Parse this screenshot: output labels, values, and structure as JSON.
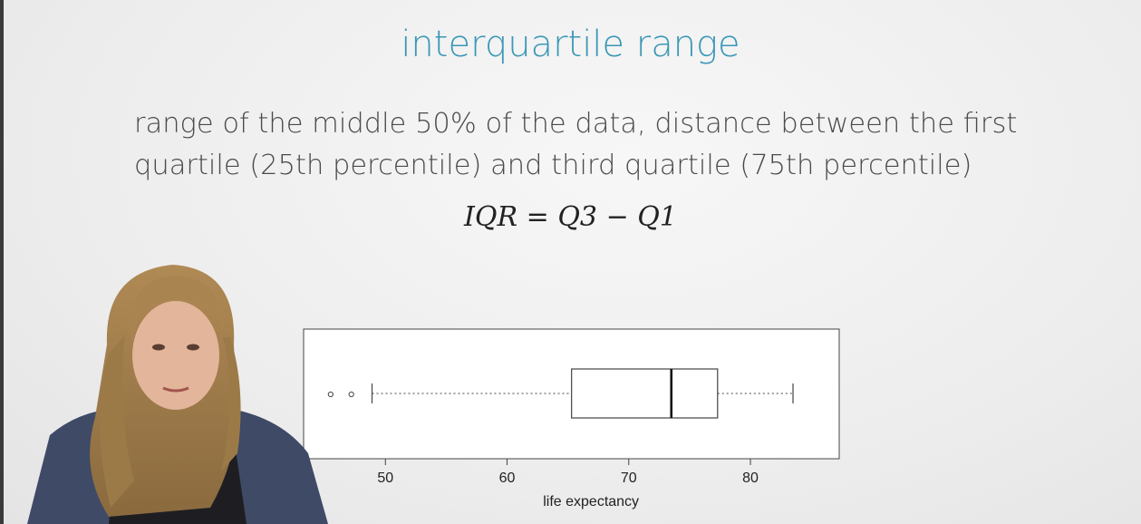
{
  "slide": {
    "title": "interquartile range",
    "definition": "range of the middle 50% of the data, distance between the first quartile (25th percentile) and third quartile (75th percentile)",
    "formula": {
      "lhs": "IQR",
      "equals": "=",
      "q3": "Q3",
      "minus": "−",
      "q1": "Q1"
    }
  },
  "chart_data": {
    "type": "box",
    "orientation": "horizontal",
    "xlabel": "life expectancy",
    "xlim": [
      43.5,
      87
    ],
    "ticks": [
      50,
      60,
      70,
      80
    ],
    "tick_labels": [
      "50",
      "60",
      "70",
      "80"
    ],
    "box": {
      "whisker_low": 48.9,
      "q1": 65.3,
      "median": 73.5,
      "q3": 77.3,
      "whisker_high": 83.5
    },
    "outliers": [
      45.5,
      47.2
    ]
  },
  "colors": {
    "title": "#3b98b6",
    "text": "#4a4a4a",
    "plot_stroke": "#444444"
  }
}
